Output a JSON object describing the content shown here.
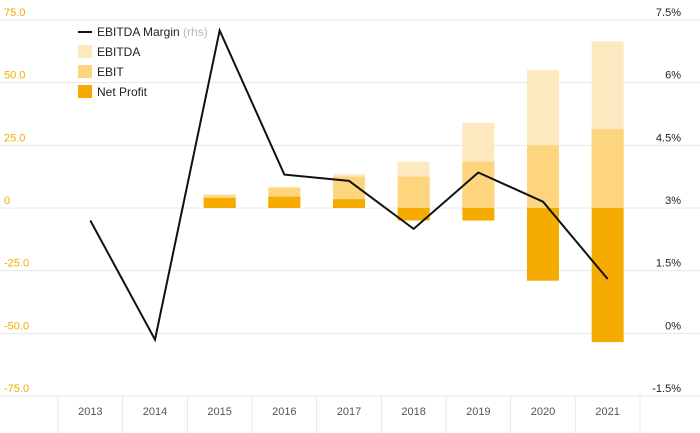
{
  "chart_data": {
    "type": "bar",
    "categories": [
      "2013",
      "2014",
      "2015",
      "2016",
      "2017",
      "2018",
      "2019",
      "2020",
      "2021"
    ],
    "series": [
      {
        "name": "EBITDA",
        "type": "bar",
        "axis": "left",
        "color": "#fde9c0",
        "values": [
          null,
          null,
          5.5,
          8.5,
          13.5,
          18.5,
          34.0,
          55.0,
          66.5
        ]
      },
      {
        "name": "EBIT",
        "type": "bar",
        "axis": "left",
        "color": "#fcd57e",
        "values": [
          null,
          null,
          5.0,
          8.0,
          12.5,
          12.5,
          18.5,
          25.0,
          31.5
        ]
      },
      {
        "name": "Net Profit",
        "type": "bar",
        "axis": "left",
        "color": "#f5ab00",
        "values": [
          null,
          null,
          4.0,
          4.5,
          3.5,
          -5.0,
          -5.0,
          -29.0,
          -53.5
        ]
      },
      {
        "name": "EBITDA Margin",
        "name_suffix": "(rhs)",
        "type": "line",
        "axis": "right",
        "color": "#111111",
        "values": [
          2.7,
          -0.15,
          7.25,
          3.8,
          3.65,
          2.5,
          3.85,
          3.15,
          1.3
        ]
      }
    ],
    "y_left": {
      "min": -75,
      "max": 75,
      "ticks": [
        75,
        50,
        25,
        0,
        -25,
        -50,
        -75
      ],
      "tick_labels": [
        "75.0",
        "50.0",
        "25.0",
        "0",
        "-25.0",
        "-50.0",
        "-75.0"
      ]
    },
    "y_right": {
      "min": -1.5,
      "max": 7.5,
      "ticks": [
        7.5,
        6,
        4.5,
        3,
        1.5,
        0,
        -1.5
      ],
      "tick_labels": [
        "7.5%",
        "6%",
        "4.5%",
        "3%",
        "1.5%",
        "0%",
        "-1.5%"
      ]
    },
    "legend_position": "top-left",
    "grid": true,
    "colors": {
      "left_axis_text": "#f0ab00",
      "right_axis_text": "#222222",
      "grid": "#e8e8e8",
      "x_axis_text": "#555555"
    }
  }
}
